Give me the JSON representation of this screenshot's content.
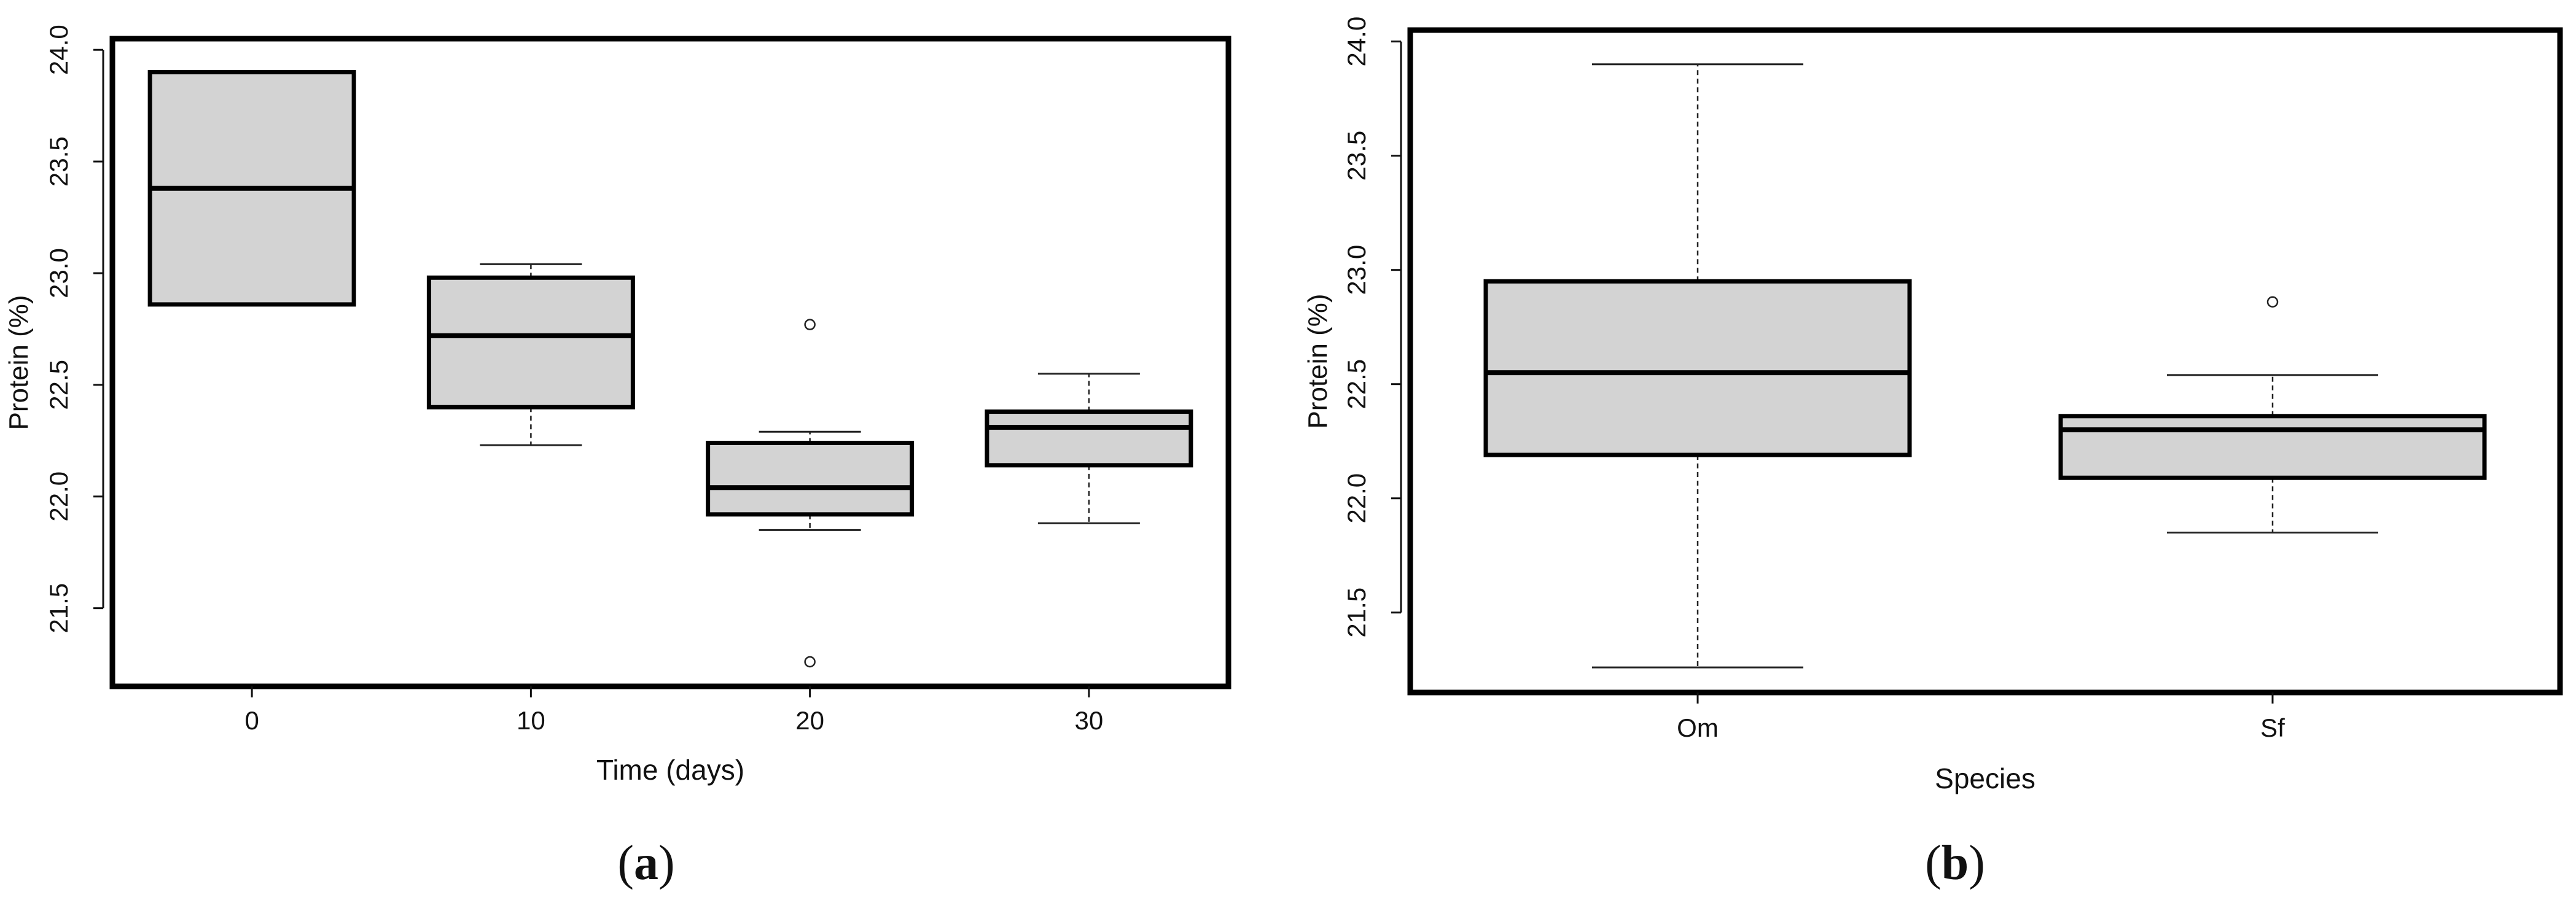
{
  "panels": [
    {
      "label_open": "(",
      "label_letter": "a",
      "label_close": ")"
    },
    {
      "label_open": "(",
      "label_letter": "b",
      "label_close": ")"
    }
  ],
  "chart_data": [
    {
      "type": "boxplot",
      "xlabel": "Time (days)",
      "ylabel": "Protein (%)",
      "ylim": [
        21.15,
        24.05
      ],
      "yticks": [
        21.5,
        22.0,
        22.5,
        23.0,
        23.5,
        24.0
      ],
      "ytick_labels": [
        "21.5",
        "22.0",
        "22.5",
        "23.0",
        "23.5",
        "24.0"
      ],
      "categories": [
        "0",
        "10",
        "20",
        "30"
      ],
      "boxes": [
        {
          "category": "0",
          "min": 22.86,
          "q1": 22.86,
          "median": 23.38,
          "q3": 23.9,
          "max": 23.9,
          "outliers": []
        },
        {
          "category": "10",
          "min": 22.23,
          "q1": 22.4,
          "median": 22.72,
          "q3": 22.98,
          "max": 23.04,
          "outliers": []
        },
        {
          "category": "20",
          "min": 21.85,
          "q1": 21.92,
          "median": 22.04,
          "q3": 22.24,
          "max": 22.29,
          "outliers": [
            22.77,
            21.26
          ]
        },
        {
          "category": "30",
          "min": 21.88,
          "q1": 22.14,
          "median": 22.31,
          "q3": 22.38,
          "max": 22.55,
          "outliers": []
        }
      ],
      "box_fill": "#d3d3d3",
      "grid": false
    },
    {
      "type": "boxplot",
      "xlabel": "Species",
      "ylabel": "Protein (%)",
      "ylim": [
        21.15,
        24.05
      ],
      "yticks": [
        21.5,
        22.0,
        22.5,
        23.0,
        23.5,
        24.0
      ],
      "ytick_labels": [
        "21.5",
        "22.0",
        "22.5",
        "23.0",
        "23.5",
        "24.0"
      ],
      "categories": [
        "Om",
        "Sf"
      ],
      "boxes": [
        {
          "category": "Om",
          "min": 21.26,
          "q1": 22.19,
          "median": 22.55,
          "q3": 22.95,
          "max": 23.9,
          "outliers": []
        },
        {
          "category": "Sf",
          "min": 21.85,
          "q1": 22.09,
          "median": 22.3,
          "q3": 22.36,
          "max": 22.54,
          "outliers": [
            22.86
          ]
        }
      ],
      "box_fill": "#d3d3d3",
      "grid": false
    }
  ]
}
